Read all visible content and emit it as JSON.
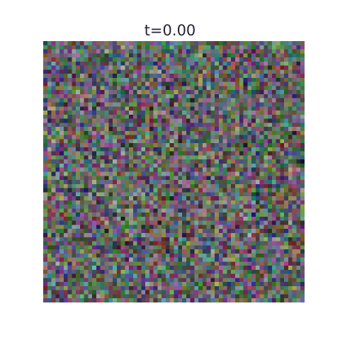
{
  "figure": {
    "title": "t=0.00"
  },
  "image": {
    "description_kind": "random RGB noise texture",
    "palette_hint": [
      "#6f7f6a",
      "#7a5f8a",
      "#5f8f7a",
      "#8a6f6f",
      "#5f6f8f",
      "#6a8f5f"
    ]
  }
}
